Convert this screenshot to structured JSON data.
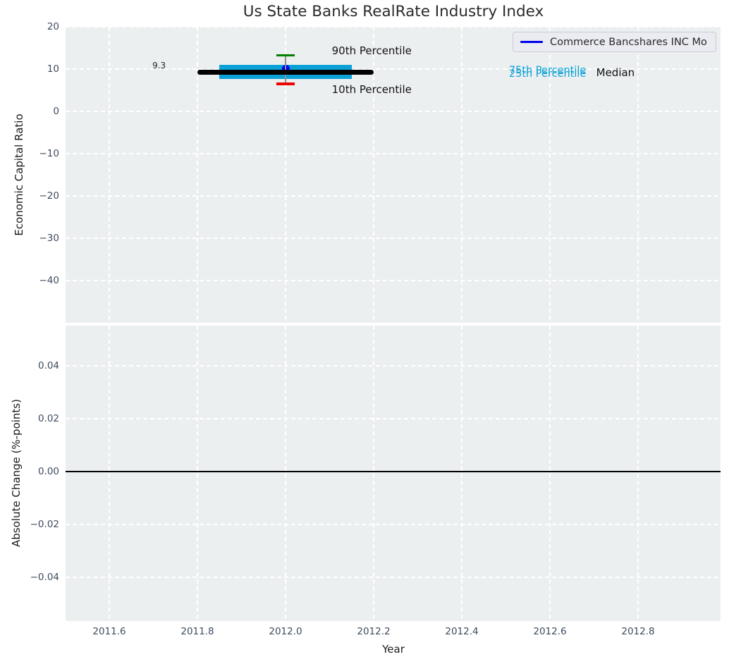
{
  "chart_data": [
    {
      "type": "line",
      "title": "Us State Banks RealRate Industry Index",
      "ylabel": "Economic Capital Ratio",
      "xlim": [
        2011.5008,
        2012.9872
      ],
      "ylim": [
        -50,
        20
      ],
      "grid": true,
      "xtick_values": [
        2011.6,
        2011.8,
        2012.0,
        2012.2,
        2012.4,
        2012.6,
        2012.8
      ],
      "ytick_values": [
        20,
        10,
        0,
        -10,
        -20,
        -30,
        -40
      ],
      "ytick_labels": [
        "20",
        "10",
        "0",
        "−10",
        "−20",
        "−30",
        "−40"
      ],
      "legend": {
        "position": "upper right",
        "entries": [
          {
            "label": "Commerce Bancshares INC Mo",
            "color": "#0000ee"
          }
        ]
      },
      "series": [
        {
          "name": "25th-75th Percentile band",
          "type": "band",
          "x": [
            2011.85,
            2012.15
          ],
          "y": [
            7.6,
            11.0
          ],
          "color": "#0aa1d7"
        },
        {
          "name": "Commerce Bancshares INC Mo",
          "type": "point",
          "x": 2012.0,
          "y": 10.1,
          "color": "#0000ee",
          "radius": 5.5
        },
        {
          "name": "10th-90th Percentile range",
          "type": "errorbar",
          "x": 2012.0,
          "y": [
            6.5,
            13.3
          ],
          "line_color": "#8f8f8f",
          "cap_top_color": "#007f00",
          "cap_bottom_color": "#ee0000",
          "cap_width": 26
        },
        {
          "name": "Median",
          "type": "line",
          "x": [
            2011.8,
            2012.2
          ],
          "y": 9.3,
          "color": "#000000",
          "thickness": 7
        }
      ],
      "annotations": [
        {
          "text": "9.3",
          "x": 2011.713,
          "y": 10.8,
          "color": "#262626",
          "size": 12,
          "ha": "center"
        },
        {
          "text": "90th Percentile",
          "x": 2012.105,
          "y": 14.3,
          "color": "#111111",
          "size": 15,
          "ha": "left"
        },
        {
          "text": "10th Percentile",
          "x": 2012.105,
          "y": 5.1,
          "color": "#111111",
          "size": 15,
          "ha": "left"
        },
        {
          "text": "75th Percentile",
          "x": 2012.507,
          "y": 9.7,
          "color": "#0aa1d7",
          "size": 14.5,
          "ha": "left"
        },
        {
          "text": "25th Percentile",
          "x": 2012.507,
          "y": 8.9,
          "color": "#0aa1d7",
          "size": 14.5,
          "ha": "left"
        },
        {
          "text": "Median",
          "x": 2012.705,
          "y": 9.1,
          "color": "#111111",
          "size": 15,
          "ha": "left"
        }
      ]
    },
    {
      "type": "line",
      "xlabel": "Year",
      "ylabel": "Absolute Change (%-points)",
      "xlim": [
        2011.5008,
        2012.9872
      ],
      "ylim": [
        -0.0565,
        0.0552
      ],
      "grid": true,
      "xtick_values": [
        2011.6,
        2011.8,
        2012.0,
        2012.2,
        2012.4,
        2012.6,
        2012.8
      ],
      "xtick_labels": [
        "2011.6",
        "2011.8",
        "2012.0",
        "2012.2",
        "2012.4",
        "2012.6",
        "2012.8"
      ],
      "ytick_values": [
        0.04,
        0.02,
        0.0,
        -0.02,
        -0.04
      ],
      "ytick_labels": [
        "0.04",
        "0.02",
        "0.00",
        "−0.02",
        "−0.04"
      ],
      "hline": {
        "y": 0.0,
        "color": "#000000"
      }
    }
  ]
}
